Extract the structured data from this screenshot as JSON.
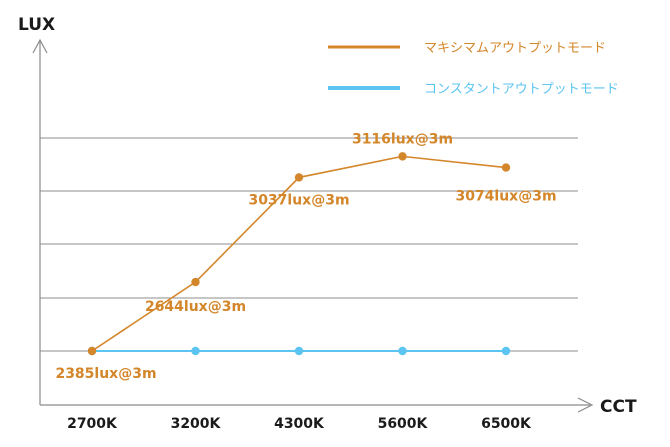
{
  "chart_data": {
    "type": "line",
    "ylabel": "LUX",
    "xlabel": "CCT",
    "categories": [
      "2700K",
      "3200K",
      "4300K",
      "5600K",
      "6500K"
    ],
    "ylim": [
      2385,
      3185
    ],
    "grid": true,
    "legend": "top-right",
    "series": [
      {
        "name": "マキシマムアウトプットモード",
        "color": "#d4862a",
        "values": [
          2385,
          2644,
          3037,
          3116,
          3074
        ],
        "labels": [
          "2385lux@3m",
          "2644lux@3m",
          "3037lux@3m",
          "3116lux@3m",
          "3074lux@3m"
        ]
      },
      {
        "name": "コンスタントアウトプットモード",
        "color": "#5bc4f0",
        "values": [
          2385,
          2385,
          2385,
          2385,
          2385
        ]
      }
    ]
  }
}
